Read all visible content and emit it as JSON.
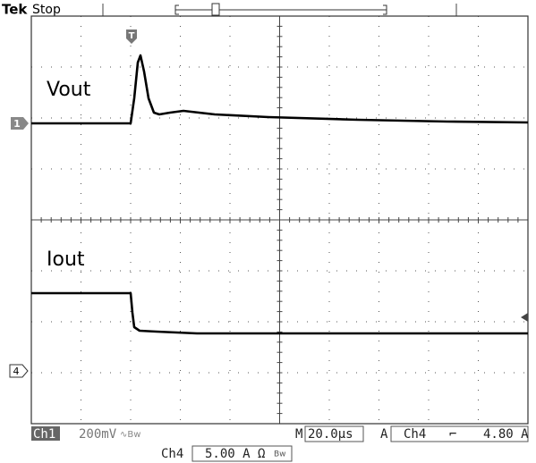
{
  "header": {
    "brand": "Tek",
    "status": "Stop"
  },
  "trigger_marker": "T",
  "traces": [
    {
      "label": "Vout",
      "channel": "1"
    },
    {
      "label": "Iout",
      "channel": "4"
    }
  ],
  "status_bar": {
    "channel": "Ch1",
    "scale": "200mV",
    "coupling": "∿Bw",
    "timebase_prefix": "M",
    "timebase": "20.0µs",
    "trigger_mode": "A",
    "trigger_source": "Ch4",
    "trigger_slope": "⌐",
    "trigger_level": "4.80 A",
    "channel2": "Ch4",
    "scale2": "5.00 A Ω",
    "coupling2": "Bw"
  }
}
